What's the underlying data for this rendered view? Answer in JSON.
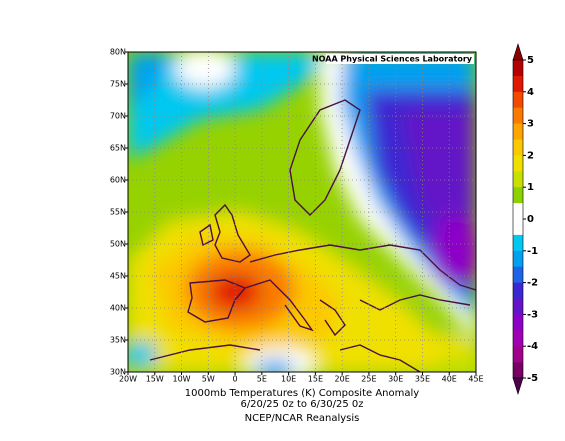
{
  "map": {
    "source": "NOAA Physical Sciences Laboratory",
    "lat_labels": [
      "80N",
      "75N",
      "70N",
      "65N",
      "60N",
      "55N",
      "50N",
      "45N",
      "40N",
      "35N",
      "30N"
    ],
    "lon_labels": [
      "20W",
      "15W",
      "10W",
      "5W",
      "0",
      "5E",
      "10E",
      "15E",
      "20E",
      "25E",
      "30E",
      "35E",
      "40E",
      "45E"
    ],
    "caption": [
      "1000mb Temperatures (K)  Composite Anomaly",
      "6/20/25 0z  to 6/30/25 0z"
    ],
    "credit": "NCEP/NCAR Reanalysis"
  },
  "colorbar": {
    "ticks": [
      5,
      4,
      3,
      2,
      1,
      0,
      -1,
      -2,
      -3,
      -4,
      -5
    ],
    "colors": [
      "#b40000",
      "#e01800",
      "#f44a00",
      "#fa7a00",
      "#fca400",
      "#fcc800",
      "#f0e000",
      "#c8e000",
      "#8cd200",
      "#ffffff",
      "#ffffff",
      "#00c8f0",
      "#00a0f0",
      "#1e64e6",
      "#3c28d2",
      "#6414c8",
      "#8c00c8",
      "#a000b4",
      "#a0008c",
      "#780064"
    ],
    "over_color": "#8c0000",
    "under_color": "#500050"
  }
}
